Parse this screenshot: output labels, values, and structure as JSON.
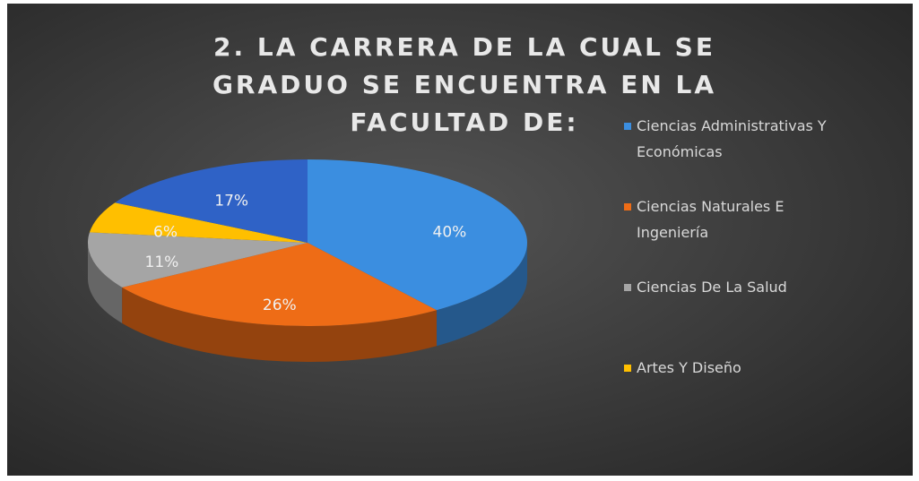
{
  "chart_data": {
    "type": "pie3d",
    "title": "2. LA CARRERA DE LA CUAL SE GRADUO SE ENCUENTRA EN LA FACULTAD DE:",
    "categories": [
      "Ciencias Administrativas Y Económicas",
      "Ciencias Naturales E Ingeniería",
      "Ciencias De La Salud",
      "Artes Y Diseño",
      null
    ],
    "values": [
      40,
      26,
      11,
      6,
      17
    ],
    "value_labels": [
      "40%",
      "26%",
      "11%",
      "6%",
      "17%"
    ],
    "colors": [
      "#3b8ee0",
      "#ee6c16",
      "#a5a5a5",
      "#ffbf00",
      "#2f62c6"
    ],
    "legend": "right"
  }
}
